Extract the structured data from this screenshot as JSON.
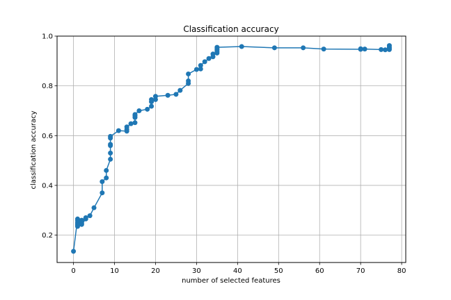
{
  "chart_data": {
    "type": "line",
    "title": "Classification accuracy",
    "xlabel": "number of selected features",
    "ylabel": "classification accuracy",
    "xlim": [
      -4,
      81
    ],
    "ylim": [
      0.09,
      1.0
    ],
    "xticks": [
      0,
      10,
      20,
      30,
      40,
      50,
      60,
      70,
      80
    ],
    "yticks": [
      0.2,
      0.4,
      0.6,
      0.8,
      1.0
    ],
    "ytick_labels": [
      "0.2",
      "0.4",
      "0.6",
      "0.8",
      "1.0"
    ],
    "grid": true,
    "series": [
      {
        "color": "#1f77b4",
        "marker": "circle",
        "x": [
          0,
          1,
          1,
          1,
          1,
          1,
          1,
          2,
          2,
          2,
          2,
          3,
          3,
          4,
          5,
          7,
          7,
          8,
          8,
          9,
          9,
          9,
          9,
          9,
          9,
          11,
          13,
          13,
          13,
          14,
          15,
          15,
          15,
          15,
          16,
          18,
          19,
          19,
          19,
          20,
          20,
          23,
          25,
          26,
          28,
          28,
          28,
          30,
          31,
          31,
          32,
          33,
          34,
          34,
          35,
          35,
          35,
          35,
          35,
          41,
          49,
          56,
          61,
          70,
          70,
          71,
          75,
          76,
          77,
          77,
          77,
          77
        ],
        "y": [
          0.135,
          0.265,
          0.258,
          0.25,
          0.245,
          0.24,
          0.235,
          0.26,
          0.255,
          0.248,
          0.243,
          0.265,
          0.27,
          0.278,
          0.31,
          0.37,
          0.415,
          0.43,
          0.46,
          0.505,
          0.53,
          0.56,
          0.565,
          0.59,
          0.597,
          0.62,
          0.618,
          0.625,
          0.635,
          0.648,
          0.652,
          0.673,
          0.68,
          0.685,
          0.7,
          0.706,
          0.718,
          0.736,
          0.745,
          0.745,
          0.758,
          0.762,
          0.766,
          0.782,
          0.81,
          0.82,
          0.848,
          0.866,
          0.868,
          0.882,
          0.897,
          0.91,
          0.917,
          0.928,
          0.932,
          0.938,
          0.945,
          0.95,
          0.955,
          0.958,
          0.953,
          0.953,
          0.948,
          0.947,
          0.949,
          0.948,
          0.946,
          0.945,
          0.946,
          0.95,
          0.955,
          0.962
        ]
      }
    ]
  }
}
